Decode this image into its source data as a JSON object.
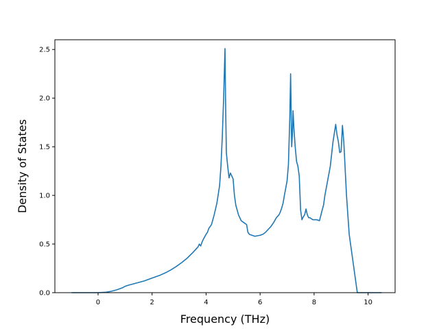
{
  "chart_data": {
    "type": "line",
    "title": "",
    "xlabel": "Frequency (THz)",
    "ylabel": "Density of States",
    "xlim": [
      -1.6,
      11.0
    ],
    "ylim": [
      0.0,
      2.6
    ],
    "xticks": [
      0,
      2,
      4,
      6,
      8,
      10
    ],
    "yticks": [
      0.0,
      0.5,
      1.0,
      1.5,
      2.0,
      2.5
    ],
    "xtick_labels": [
      "0",
      "2",
      "4",
      "6",
      "8",
      "10"
    ],
    "ytick_labels": [
      "0.0",
      "0.5",
      "1.0",
      "1.5",
      "2.0",
      "2.5"
    ],
    "grid": false,
    "legend": "none",
    "line_color": "#1f77b4",
    "series": [
      {
        "x": [
          -0.98,
          -0.5,
          0.0,
          0.3,
          0.5,
          0.7,
          0.9,
          1.0,
          1.1,
          1.3,
          1.5,
          1.7,
          1.9,
          2.1,
          2.3,
          2.5,
          2.7,
          2.9,
          3.1,
          3.3,
          3.5,
          3.6,
          3.7,
          3.75,
          3.8,
          3.85,
          3.9,
          4.0,
          4.05,
          4.1,
          4.2,
          4.3,
          4.4,
          4.5,
          4.55,
          4.6,
          4.65,
          4.7,
          4.72,
          4.75,
          4.8,
          4.85,
          4.9,
          5.0,
          5.05,
          5.1,
          5.2,
          5.3,
          5.4,
          5.5,
          5.55,
          5.6,
          5.7,
          5.8,
          5.9,
          6.0,
          6.1,
          6.2,
          6.3,
          6.4,
          6.5,
          6.6,
          6.7,
          6.75,
          6.8,
          6.85,
          6.9,
          7.0,
          7.05,
          7.1,
          7.13,
          7.17,
          7.2,
          7.22,
          7.25,
          7.3,
          7.35,
          7.4,
          7.45,
          7.5,
          7.55,
          7.6,
          7.65,
          7.7,
          7.75,
          7.8,
          7.85,
          7.9,
          7.95,
          8.0,
          8.1,
          8.2,
          8.3,
          8.35,
          8.4,
          8.5,
          8.6,
          8.7,
          8.8,
          8.85,
          8.9,
          8.95,
          9.0,
          9.05,
          9.1,
          9.2,
          9.3,
          9.4,
          9.5,
          9.6,
          10.0,
          10.5
        ],
        "y": [
          0.0,
          0.0,
          0.0,
          0.005,
          0.015,
          0.03,
          0.05,
          0.065,
          0.075,
          0.09,
          0.105,
          0.12,
          0.14,
          0.16,
          0.18,
          0.205,
          0.235,
          0.27,
          0.31,
          0.355,
          0.41,
          0.44,
          0.47,
          0.5,
          0.48,
          0.52,
          0.55,
          0.6,
          0.62,
          0.66,
          0.7,
          0.8,
          0.92,
          1.1,
          1.3,
          1.6,
          2.0,
          2.51,
          2.0,
          1.44,
          1.3,
          1.18,
          1.23,
          1.17,
          1.0,
          0.9,
          0.8,
          0.74,
          0.72,
          0.7,
          0.62,
          0.6,
          0.59,
          0.58,
          0.585,
          0.59,
          0.6,
          0.62,
          0.65,
          0.68,
          0.72,
          0.77,
          0.8,
          0.83,
          0.87,
          0.92,
          1.0,
          1.15,
          1.32,
          1.8,
          2.25,
          1.5,
          1.65,
          1.87,
          1.7,
          1.5,
          1.35,
          1.3,
          1.2,
          0.85,
          0.75,
          0.78,
          0.8,
          0.86,
          0.8,
          0.77,
          0.77,
          0.76,
          0.75,
          0.75,
          0.75,
          0.74,
          0.85,
          0.9,
          1.0,
          1.15,
          1.3,
          1.55,
          1.73,
          1.62,
          1.55,
          1.44,
          1.45,
          1.72,
          1.55,
          1.0,
          0.6,
          0.4,
          0.2,
          0.0,
          0.0,
          0.0
        ]
      }
    ]
  }
}
